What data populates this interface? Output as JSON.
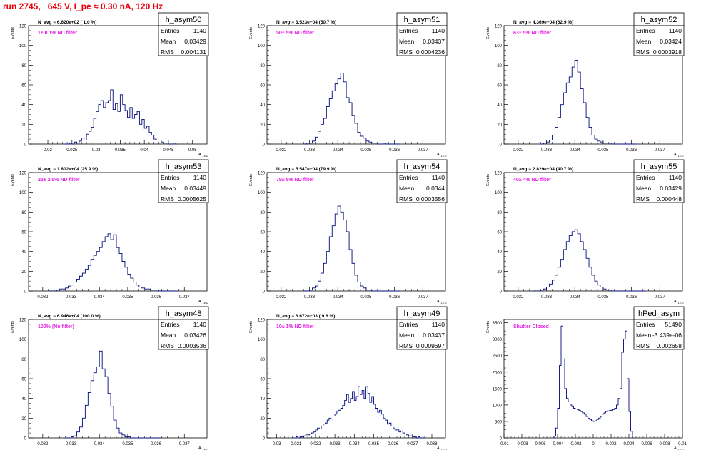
{
  "header": {
    "run_title": "run 2745,   645 V, I_pe ≈ 0.30 nA, 120 Hz"
  },
  "chart_data": [
    {
      "type": "histogram",
      "name": "h_asym50",
      "navg": "N_avg = 6.620e+02 ( 1.0 %)",
      "filter": "1± 0.1% ND filter",
      "stats": {
        "Entries": "1140",
        "Mean": "0.03429",
        "RMS": "0.004131"
      },
      "ylabel": "Events",
      "xlabel": "A_LED",
      "xlim": [
        0.016,
        0.053
      ],
      "ylim": [
        0,
        120
      ],
      "xticks": [
        "0.02",
        "0.025",
        "0.03",
        "0.035",
        "0.04",
        "0.045",
        "0.05"
      ],
      "yticks": [
        "0",
        "20",
        "40",
        "60",
        "80",
        "100",
        "120"
      ],
      "hist": {
        "xmin": 0.0235,
        "xmax": 0.047,
        "bins": 47,
        "counts": [
          0,
          0,
          1,
          0,
          2,
          1,
          3,
          6,
          4,
          10,
          13,
          17,
          26,
          33,
          40,
          44,
          37,
          42,
          44,
          55,
          35,
          41,
          33,
          50,
          40,
          34,
          27,
          37,
          26,
          30,
          33,
          20,
          25,
          16,
          18,
          12,
          9,
          5,
          4,
          4,
          2,
          1,
          1,
          0,
          0,
          1,
          0
        ]
      }
    },
    {
      "type": "histogram",
      "name": "h_asym51",
      "navg": "N_avg = 3.523e+04 (50.7 %)",
      "filter": "50± 5% ND filter",
      "stats": {
        "Entries": "1140",
        "Mean": "0.03437",
        "RMS": "0.0004236"
      },
      "ylabel": "Events",
      "xlabel": "A_LED",
      "xlim": [
        0.0315,
        0.0378
      ],
      "ylim": [
        0,
        120
      ],
      "xticks": [
        "0.032",
        "0.033",
        "0.034",
        "0.035",
        "0.036",
        "0.037"
      ],
      "yticks": [
        "0",
        "20",
        "40",
        "60",
        "80",
        "100",
        "120"
      ],
      "hist": {
        "xmin": 0.0328,
        "xmax": 0.0362,
        "bins": 34,
        "counts": [
          0,
          1,
          1,
          3,
          7,
          13,
          20,
          26,
          38,
          46,
          54,
          61,
          66,
          72,
          63,
          47,
          42,
          29,
          21,
          12,
          8,
          6,
          3,
          2,
          1,
          1,
          0,
          0,
          1,
          0,
          0,
          0,
          0,
          0
        ]
      }
    },
    {
      "type": "histogram",
      "name": "h_asym52",
      "navg": "N_avg = 4.369e+04 (62.9 %)",
      "filter": "63± 5% ND filter",
      "stats": {
        "Entries": "1140",
        "Mean": "0.03424",
        "RMS": "0.0003918"
      },
      "ylabel": "Events",
      "xlabel": "A_LED",
      "xlim": [
        0.0315,
        0.0378
      ],
      "ylim": [
        0,
        120
      ],
      "xticks": [
        "0.032",
        "0.033",
        "0.034",
        "0.035",
        "0.036",
        "0.037"
      ],
      "yticks": [
        "0",
        "20",
        "40",
        "60",
        "80",
        "100",
        "120"
      ],
      "hist": {
        "xmin": 0.0328,
        "xmax": 0.0362,
        "bins": 34,
        "counts": [
          0,
          1,
          2,
          4,
          9,
          17,
          27,
          40,
          52,
          62,
          68,
          78,
          85,
          73,
          56,
          42,
          27,
          17,
          9,
          5,
          3,
          2,
          1,
          1,
          1,
          0,
          0,
          0,
          0,
          0,
          0,
          0,
          0,
          0
        ]
      }
    },
    {
      "type": "histogram",
      "name": "h_asym53",
      "navg": "N_avg = 1.802e+04 (25.9 %)",
      "filter": "25± 2.5% ND filter",
      "stats": {
        "Entries": "1140",
        "Mean": "0.03449",
        "RMS": "0.0005625"
      },
      "ylabel": "Events",
      "xlabel": "A_LED",
      "xlim": [
        0.0315,
        0.0378
      ],
      "ylim": [
        0,
        120
      ],
      "xticks": [
        "0.032",
        "0.033",
        "0.034",
        "0.035",
        "0.036",
        "0.037"
      ],
      "yticks": [
        "0",
        "20",
        "40",
        "60",
        "80",
        "100",
        "120"
      ],
      "hist": {
        "xmin": 0.0322,
        "xmax": 0.0368,
        "bins": 46,
        "counts": [
          0,
          1,
          0,
          1,
          2,
          2,
          3,
          5,
          6,
          9,
          12,
          15,
          18,
          22,
          26,
          32,
          36,
          40,
          44,
          50,
          55,
          58,
          52,
          57,
          44,
          38,
          30,
          24,
          17,
          13,
          9,
          6,
          4,
          3,
          2,
          2,
          1,
          1,
          0,
          1,
          0,
          0,
          0,
          0,
          0,
          0
        ]
      }
    },
    {
      "type": "histogram",
      "name": "h_asym54",
      "navg": "N_avg = 5.547e+04 (79.9 %)",
      "filter": "79± 5% ND filter",
      "stats": {
        "Entries": "1140",
        "Mean": "0.0344",
        "RMS": "0.0003556"
      },
      "ylabel": "Events",
      "xlabel": "A_LED",
      "xlim": [
        0.0315,
        0.0378
      ],
      "ylim": [
        0,
        120
      ],
      "xticks": [
        "0.032",
        "0.033",
        "0.034",
        "0.035",
        "0.036",
        "0.037"
      ],
      "yticks": [
        "0",
        "20",
        "40",
        "60",
        "80",
        "100",
        "120"
      ],
      "hist": {
        "xmin": 0.0328,
        "xmax": 0.0362,
        "bins": 34,
        "counts": [
          0,
          0,
          1,
          3,
          5,
          10,
          18,
          28,
          40,
          55,
          66,
          78,
          86,
          80,
          72,
          60,
          42,
          28,
          16,
          9,
          5,
          3,
          1,
          1,
          0,
          0,
          0,
          0,
          0,
          0,
          0,
          0,
          0,
          0
        ]
      }
    },
    {
      "type": "histogram",
      "name": "h_asym55",
      "navg": "N_avg = 2.829e+04 (40.7 %)",
      "filter": "40± 4% ND filter",
      "stats": {
        "Entries": "1140",
        "Mean": "0.03429",
        "RMS": "0.000448"
      },
      "ylabel": "Events",
      "xlabel": "A_LED",
      "xlim": [
        0.0315,
        0.0378
      ],
      "ylim": [
        0,
        120
      ],
      "xticks": [
        "0.032",
        "0.033",
        "0.034",
        "0.035",
        "0.036",
        "0.037"
      ],
      "yticks": [
        "0",
        "20",
        "40",
        "60",
        "80",
        "100",
        "120"
      ],
      "hist": {
        "xmin": 0.0325,
        "xmax": 0.0365,
        "bins": 40,
        "counts": [
          0,
          1,
          0,
          1,
          2,
          4,
          7,
          11,
          16,
          24,
          32,
          42,
          50,
          56,
          60,
          62,
          58,
          50,
          42,
          33,
          24,
          16,
          10,
          6,
          4,
          2,
          1,
          1,
          0,
          0,
          0,
          0,
          0,
          0,
          0,
          0,
          0,
          0,
          0,
          0
        ]
      }
    },
    {
      "type": "histogram",
      "name": "h_asym48",
      "navg": "N_avg = 6.946e+04 (100.0 %)",
      "filter": "100% (No filter)",
      "stats": {
        "Entries": "1140",
        "Mean": "0.03426",
        "RMS": "0.0003536"
      },
      "ylabel": "Events",
      "xlabel": "A_LED",
      "xlim": [
        0.0315,
        0.0378
      ],
      "ylim": [
        0,
        120
      ],
      "xticks": [
        "0.032",
        "0.033",
        "0.034",
        "0.035",
        "0.036",
        "0.037"
      ],
      "yticks": [
        "0",
        "20",
        "40",
        "60",
        "80",
        "100",
        "120"
      ],
      "hist": {
        "xmin": 0.0328,
        "xmax": 0.0362,
        "bins": 34,
        "counts": [
          0,
          0,
          1,
          2,
          6,
          11,
          20,
          33,
          46,
          58,
          66,
          72,
          88,
          70,
          62,
          45,
          32,
          18,
          10,
          5,
          3,
          1,
          1,
          0,
          0,
          0,
          0,
          0,
          0,
          0,
          0,
          0,
          0,
          0
        ]
      }
    },
    {
      "type": "histogram",
      "name": "h_asym49",
      "navg": "N_avg = 6.672e+03 ( 9.6 %)",
      "filter": "10± 1% ND filter",
      "stats": {
        "Entries": "1140",
        "Mean": "0.03437",
        "RMS": "0.0009697"
      },
      "ylabel": "Events",
      "xlabel": "A_LED",
      "xlim": [
        0.0295,
        0.0387
      ],
      "ylim": [
        0,
        120
      ],
      "xticks": [
        "0.03",
        "0.031",
        "0.032",
        "0.033",
        "0.034",
        "0.035",
        "0.036",
        "0.037",
        "0.038"
      ],
      "yticks": [
        "0",
        "20",
        "40",
        "60",
        "80",
        "100",
        "120"
      ],
      "hist": {
        "xmin": 0.0308,
        "xmax": 0.0376,
        "bins": 68,
        "counts": [
          0,
          0,
          1,
          0,
          1,
          1,
          2,
          3,
          3,
          4,
          5,
          6,
          8,
          10,
          9,
          12,
          14,
          15,
          18,
          20,
          19,
          22,
          24,
          27,
          28,
          30,
          33,
          38,
          44,
          36,
          40,
          47,
          38,
          42,
          52,
          44,
          48,
          40,
          52,
          45,
          36,
          42,
          34,
          30,
          26,
          28,
          24,
          20,
          18,
          14,
          15,
          12,
          10,
          8,
          9,
          6,
          7,
          5,
          4,
          3,
          2,
          2,
          1,
          1,
          0,
          1,
          0,
          0
        ]
      }
    },
    {
      "type": "histogram",
      "name": "hPed_asym",
      "navg": "",
      "filter": "Shutter Closed",
      "stats": {
        "Entries": "51490",
        "Mean": "-3.439e-06",
        "RMS": "0.002658"
      },
      "ylabel": "Events",
      "xlabel": "A_LED",
      "xlim": [
        -0.01,
        0.01
      ],
      "ylim": [
        0,
        3600
      ],
      "xticks": [
        "-0.01",
        "-0.008",
        "-0.006",
        "-0.004",
        "-0.002",
        "0",
        "0.002",
        "0.004",
        "0.006",
        "0.008",
        "0.01"
      ],
      "yticks": [
        "0",
        "500",
        "1000",
        "1500",
        "2000",
        "2500",
        "3000",
        "3500"
      ],
      "hist": {
        "xmin": -0.0046,
        "xmax": 0.0046,
        "bins": 46,
        "counts": [
          0,
          50,
          300,
          900,
          2200,
          3400,
          2400,
          1500,
          1200,
          1100,
          1000,
          950,
          900,
          880,
          860,
          830,
          800,
          760,
          720,
          650,
          600,
          560,
          520,
          500,
          520,
          560,
          600,
          650,
          720,
          760,
          800,
          820,
          830,
          840,
          860,
          900,
          1000,
          1200,
          1500,
          2600,
          3000,
          3250,
          1800,
          800,
          200,
          0
        ]
      }
    }
  ]
}
